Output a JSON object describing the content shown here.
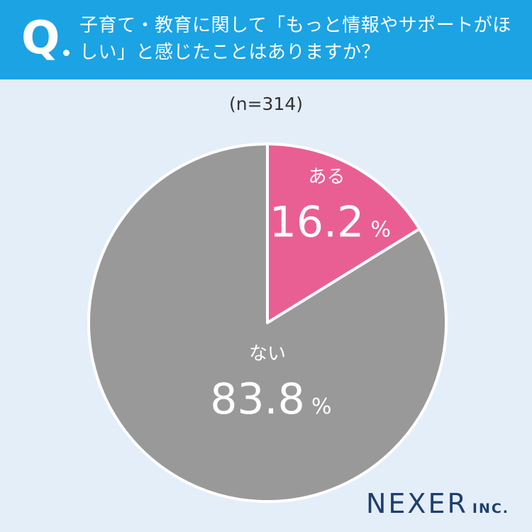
{
  "header": {
    "question_mark": "Q",
    "question": "子育て・教育に関して「もっと情報やサポートがほしい」と感じたことはありますか？"
  },
  "sample_size": "(n=314)",
  "chart_data": {
    "type": "pie",
    "title": "子育て・教育に関して「もっと情報やサポートがほしい」と感じたことはありますか？",
    "categories": [
      "ある",
      "ない"
    ],
    "values": [
      16.2,
      83.8
    ],
    "value_labels": [
      "16.2",
      "83.8"
    ],
    "unit": "%",
    "colors": [
      "#e95f93",
      "#999999"
    ],
    "start_angle_deg": 0,
    "direction": "clockwise"
  },
  "logo": {
    "main": "NEXER",
    "sub": "INC."
  }
}
